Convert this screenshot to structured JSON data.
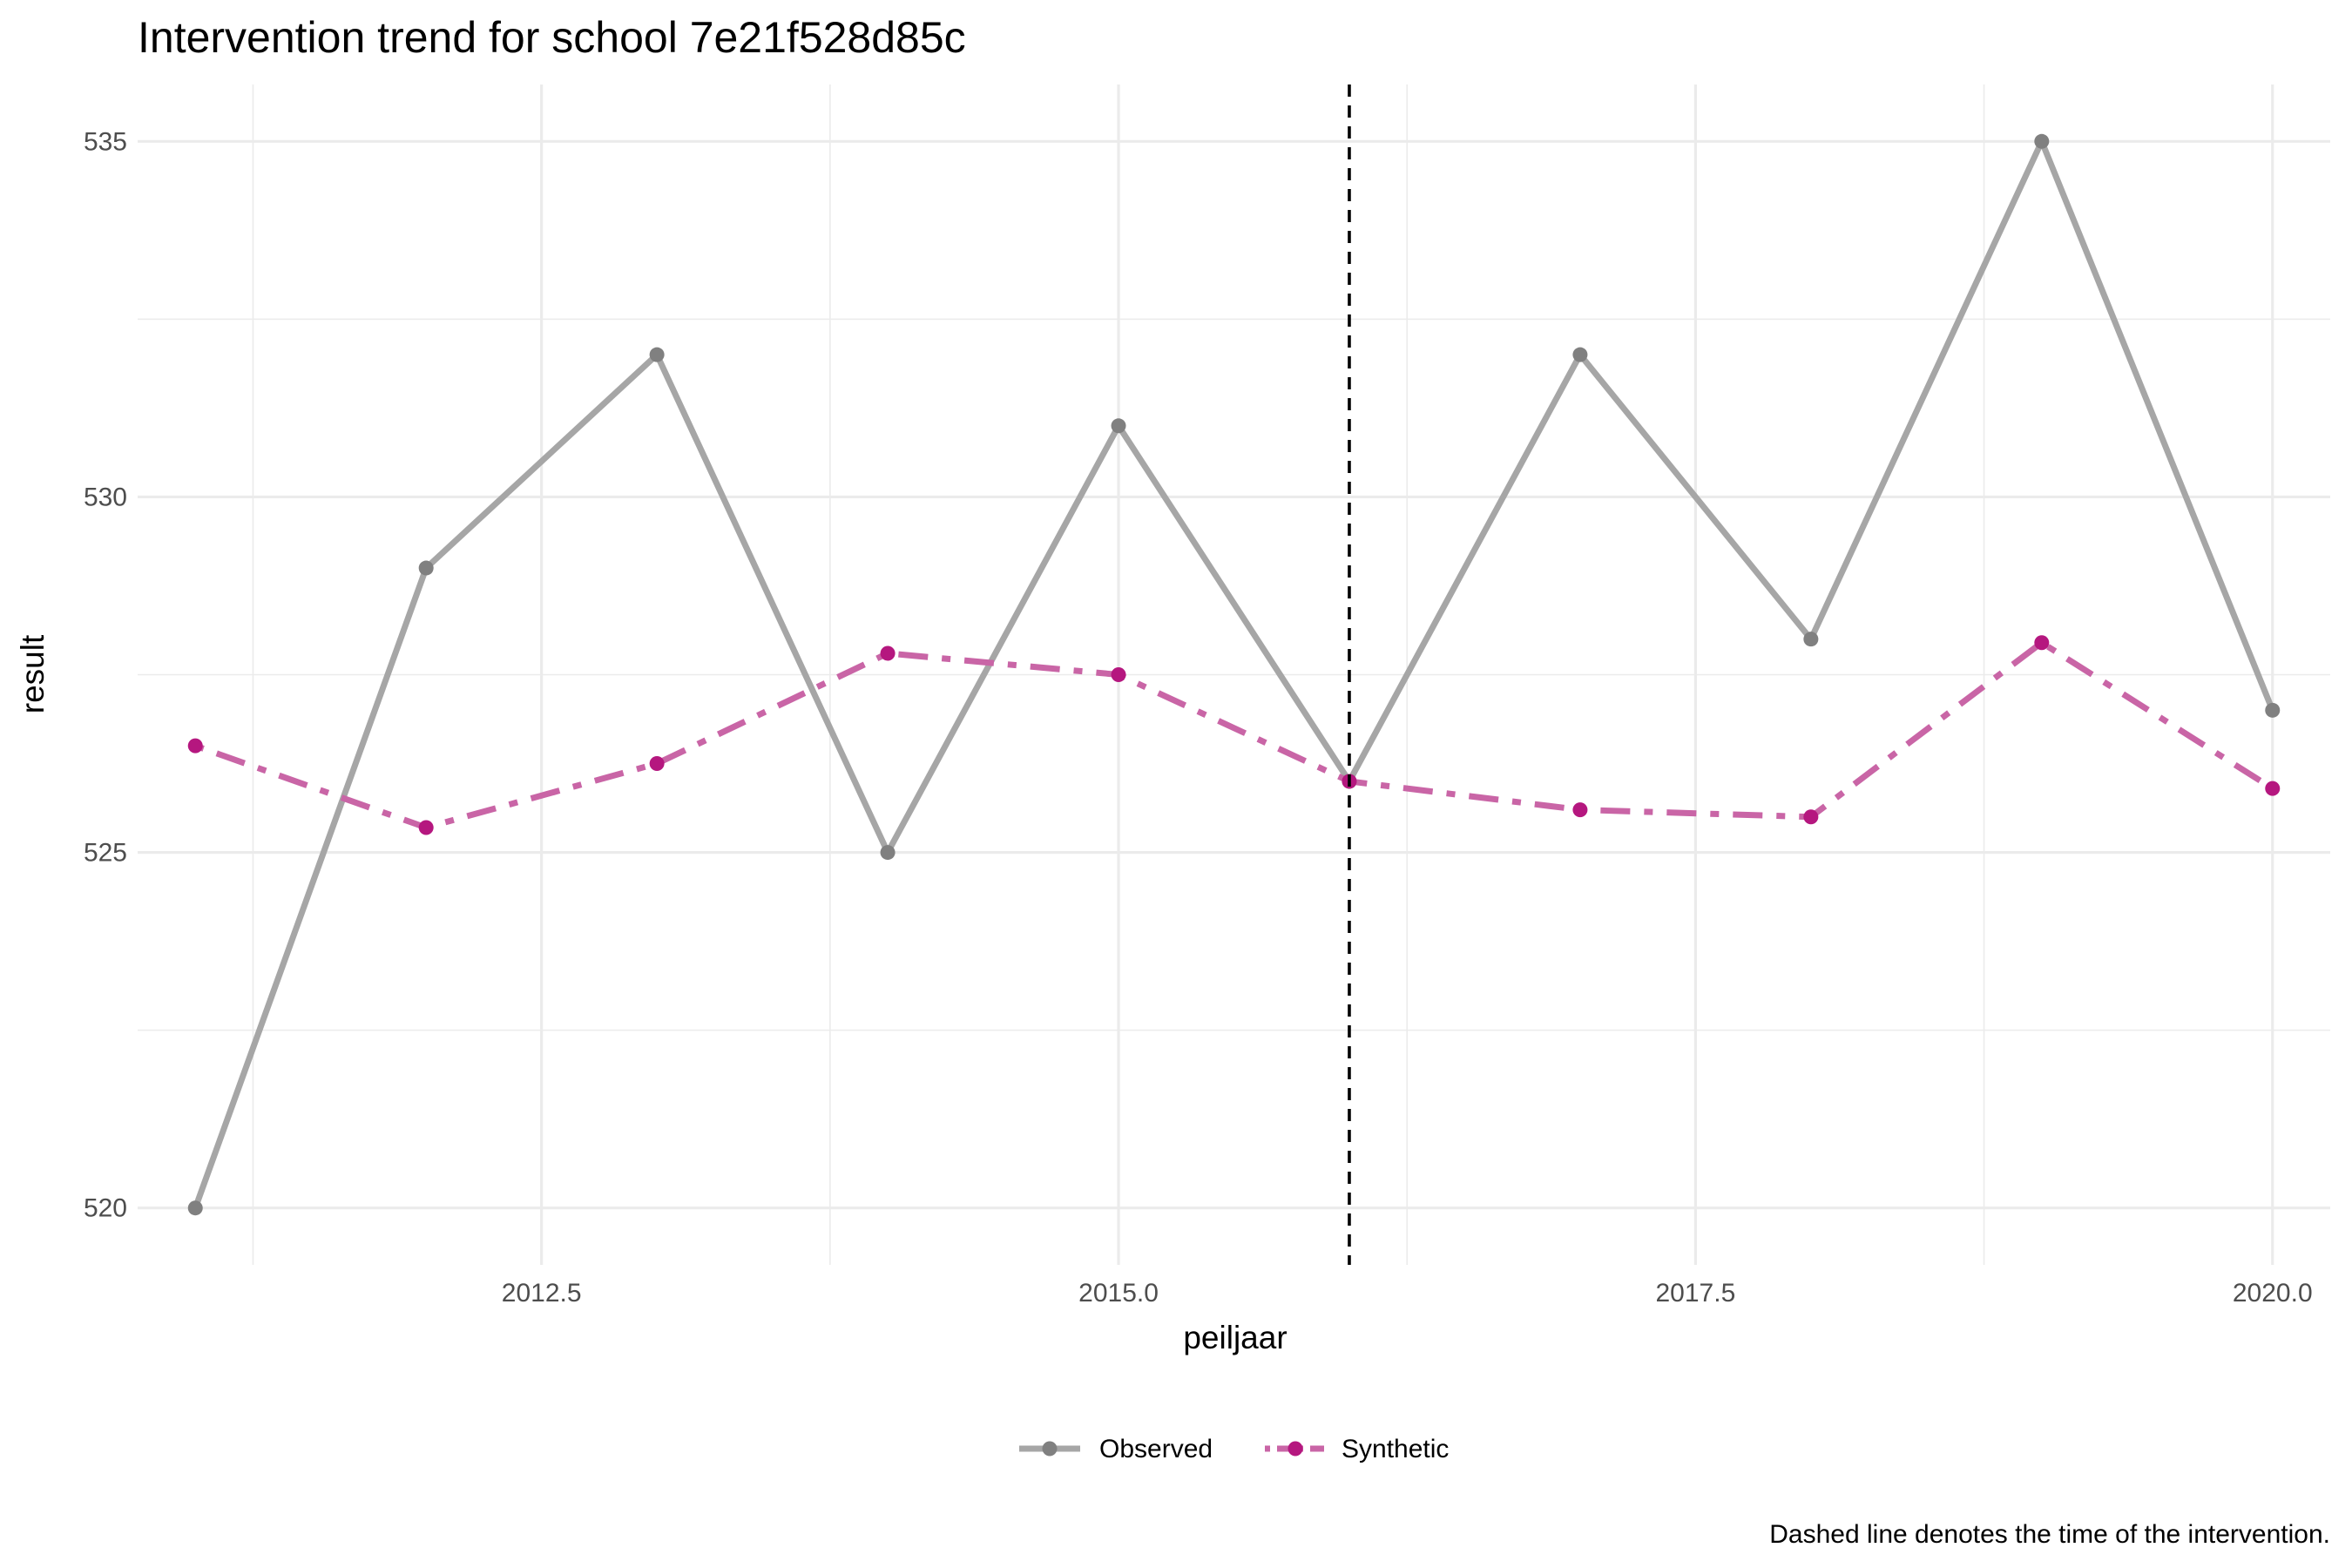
{
  "chart_data": {
    "type": "line",
    "title": "Intervention trend for school 7e21f528d85c",
    "xlabel": "peiljaar",
    "ylabel": "result",
    "caption": "Dashed line denotes the time of the intervention.",
    "xlim": [
      2010.75,
      2020.25
    ],
    "ylim": [
      519.2,
      535.8
    ],
    "x_ticks": [
      2012.5,
      2015.0,
      2017.5,
      2020.0
    ],
    "x_tick_labels": [
      "2012.5",
      "2015.0",
      "2017.5",
      "2020.0"
    ],
    "y_ticks": [
      520,
      525,
      530,
      535
    ],
    "y_tick_labels": [
      "520",
      "525",
      "530",
      "535"
    ],
    "x_minor_ticks": [
      2011.25,
      2013.75,
      2016.25,
      2018.75
    ],
    "y_minor_ticks": [
      522.5,
      527.5,
      532.5
    ],
    "intervention_x": 2016,
    "grid": true,
    "legend_position": "bottom",
    "x": [
      2011,
      2012,
      2013,
      2014,
      2015,
      2016,
      2017,
      2018,
      2019,
      2020
    ],
    "series": [
      {
        "name": "Observed",
        "color": "#808080",
        "line_color": "#a6a6a6",
        "line_style": "solid",
        "values": [
          520,
          529,
          532,
          525,
          531,
          526,
          532,
          528,
          535,
          527
        ]
      },
      {
        "name": "Synthetic",
        "color": "#b5177f",
        "line_color": "#c965a6",
        "line_style": "dotdash",
        "values": [
          526.5,
          525.35,
          526.25,
          527.8,
          527.5,
          526.0,
          525.6,
          525.5,
          527.95,
          525.9
        ]
      }
    ]
  }
}
